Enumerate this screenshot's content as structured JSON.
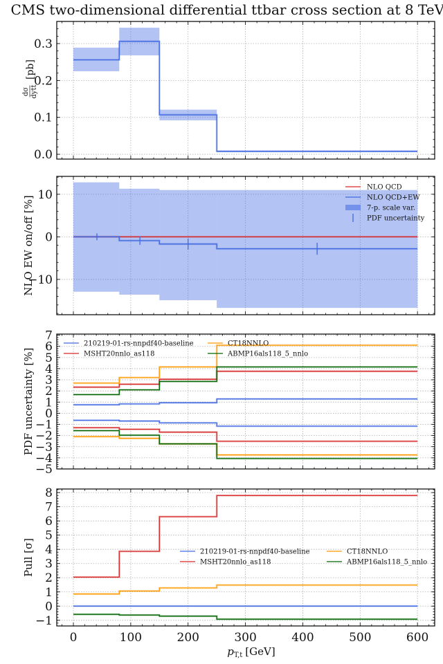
{
  "title": "CMS two-dimensional differential ttbar cross section at 8 TeV",
  "chart_data": [
    {
      "id": "xsec",
      "type": "line",
      "step": true,
      "ylabel": "dσ/dy_tt [pb]",
      "ylabel_parts": {
        "num": "dσ",
        "den": "dy",
        "den_sub": "tt",
        "unit": "[pb]"
      },
      "ylim": [
        -0.013,
        0.36
      ],
      "yticks": [
        0.0,
        0.1,
        0.2,
        0.3
      ],
      "ytick_labels": [
        "0.0",
        "0.1",
        "0.2",
        "0.3"
      ],
      "grid": true,
      "bin_edges": [
        0,
        80,
        150,
        250,
        600
      ],
      "series": [
        {
          "name": "central",
          "color": "#4169e1",
          "values": [
            0.256,
            0.306,
            0.107,
            0.008
          ]
        }
      ],
      "bands": [
        {
          "name": "uncertainty",
          "color": "#4169e1",
          "lower": [
            0.225,
            0.268,
            0.092,
            0.006
          ],
          "upper": [
            0.289,
            0.343,
            0.121,
            0.01
          ]
        }
      ]
    },
    {
      "id": "ew",
      "type": "line",
      "step": true,
      "ylabel": "NLO EW on/off [%]",
      "ylim": [
        -18.3,
        14.2
      ],
      "yticks": [
        -10,
        0,
        10
      ],
      "ytick_labels": [
        "−10",
        "0",
        "10"
      ],
      "grid": true,
      "bin_edges": [
        0,
        80,
        150,
        250,
        600
      ],
      "series": [
        {
          "name": "NLO QCD",
          "color": "#d62728",
          "values": [
            0,
            0,
            0,
            0
          ]
        },
        {
          "name": "NLO QCD+EW",
          "color": "#4169e1",
          "values": [
            0.0,
            -0.9,
            -1.7,
            -2.8
          ]
        }
      ],
      "bands": [
        {
          "name": "7-p. scale var.",
          "color": "#4169e1",
          "lower": [
            -12.9,
            -13.6,
            -14.9,
            -16.7
          ],
          "upper": [
            12.8,
            11.3,
            11.0,
            11.0
          ]
        }
      ],
      "errorbars": {
        "name": "PDF uncertainty",
        "color": "#4169e1",
        "x": [
          41,
          116,
          200,
          425
        ],
        "y": [
          0.0,
          -0.9,
          -1.7,
          -2.8
        ],
        "err": [
          0.8,
          1.0,
          1.3,
          1.4
        ]
      },
      "legend": {
        "placement": "top-right",
        "entries": [
          {
            "label": "NLO QCD",
            "kind": "line",
            "color": "#d62728"
          },
          {
            "label": "NLO QCD+EW",
            "kind": "line",
            "color": "#4169e1"
          },
          {
            "label": "7-p. scale var.",
            "kind": "patch",
            "color": "#4169e1"
          },
          {
            "label": "PDF uncertainty",
            "kind": "errorbar",
            "color": "#4169e1"
          }
        ]
      }
    },
    {
      "id": "pdfunc",
      "type": "line",
      "step": true,
      "ylabel": "PDF uncertainty [%]",
      "ylim": [
        -5,
        7.1
      ],
      "yticks": [
        -5,
        -4,
        -3,
        -2,
        -1,
        0,
        1,
        2,
        3,
        4,
        5,
        6,
        7
      ],
      "ytick_labels": [
        "−5",
        "−4",
        "−3",
        "−2",
        "−1",
        "0",
        "1",
        "2",
        "3",
        "4",
        "5",
        "6",
        "7"
      ],
      "grid": true,
      "bin_edges": [
        0,
        80,
        150,
        250,
        600
      ],
      "series": [
        {
          "name": "210219-01-rs-nnpdf40-baseline",
          "bound": "upper",
          "color": "#4169e1",
          "values": [
            0.76,
            0.83,
            0.94,
            1.28
          ]
        },
        {
          "name": "210219-01-rs-nnpdf40-baseline",
          "bound": "lower",
          "color": "#4169e1",
          "values": [
            -0.63,
            -0.7,
            -0.87,
            -1.16
          ]
        },
        {
          "name": "MSHT20nnlo_as118",
          "bound": "upper",
          "color": "#d62728",
          "values": [
            2.34,
            2.6,
            3.05,
            3.76
          ]
        },
        {
          "name": "MSHT20nnlo_as118",
          "bound": "lower",
          "color": "#d62728",
          "values": [
            -1.3,
            -1.44,
            -1.7,
            -2.52
          ]
        },
        {
          "name": "CT18NNLO",
          "bound": "upper",
          "color": "#ff9900",
          "values": [
            2.7,
            3.2,
            4.15,
            6.1
          ]
        },
        {
          "name": "CT18NNLO",
          "bound": "lower",
          "color": "#ff9900",
          "values": [
            -2.1,
            -2.25,
            -2.75,
            -3.74
          ]
        },
        {
          "name": "ABMP16als118_5_nnlo",
          "bound": "upper",
          "color": "#006400",
          "values": [
            1.67,
            2.1,
            2.85,
            4.15
          ]
        },
        {
          "name": "ABMP16als118_5_nnlo",
          "bound": "lower",
          "color": "#006400",
          "values": [
            -1.56,
            -1.97,
            -2.75,
            -4.06
          ]
        }
      ],
      "legend": {
        "placement": "top-left",
        "ncol": 2,
        "entries": [
          {
            "label": "210219-01-rs-nnpdf40-baseline",
            "color": "#4169e1"
          },
          {
            "label": "CT18NNLO",
            "color": "#ff9900"
          },
          {
            "label": "MSHT20nnlo_as118",
            "color": "#d62728"
          },
          {
            "label": "ABMP16als118_5_nnlo",
            "color": "#006400"
          }
        ]
      }
    },
    {
      "id": "pull",
      "type": "line",
      "step": true,
      "ylabel": "Pull [σ]",
      "xlabel": "p_T,t [GeV]",
      "xlabel_parts": {
        "main": "p",
        "sub": "T,t",
        "unit": "[GeV]"
      },
      "ylim": [
        -1.4,
        8.25
      ],
      "yticks": [
        -1,
        0,
        1,
        2,
        3,
        4,
        5,
        6,
        7,
        8
      ],
      "ytick_labels": [
        "−1",
        "0",
        "1",
        "2",
        "3",
        "4",
        "5",
        "6",
        "7",
        "8"
      ],
      "xticks": [
        0,
        100,
        200,
        300,
        400,
        500,
        600
      ],
      "xtick_labels": [
        "0",
        "100",
        "200",
        "300",
        "400",
        "500",
        "600"
      ],
      "grid": true,
      "bin_edges": [
        0,
        80,
        150,
        250,
        600
      ],
      "series": [
        {
          "name": "210219-01-rs-nnpdf40-baseline",
          "color": "#4169e1",
          "values": [
            0,
            0,
            0,
            0
          ]
        },
        {
          "name": "MSHT20nnlo_as118",
          "color": "#d62728",
          "values": [
            2.04,
            3.86,
            6.3,
            7.79
          ]
        },
        {
          "name": "CT18NNLO",
          "color": "#ff9900",
          "values": [
            0.85,
            1.06,
            1.28,
            1.48
          ]
        },
        {
          "name": "ABMP16als118_5_nnlo",
          "color": "#006400",
          "values": [
            -0.58,
            -0.63,
            -0.71,
            -0.92
          ]
        }
      ],
      "legend": {
        "placement": "center-right",
        "ncol": 2,
        "entries": [
          {
            "label": "210219-01-rs-nnpdf40-baseline",
            "color": "#4169e1"
          },
          {
            "label": "CT18NNLO",
            "color": "#ff9900"
          },
          {
            "label": "MSHT20nnlo_as118",
            "color": "#d62728"
          },
          {
            "label": "ABMP16als118_5_nnlo",
            "color": "#006400"
          }
        ]
      }
    }
  ],
  "xlim": [
    -29,
    630
  ]
}
